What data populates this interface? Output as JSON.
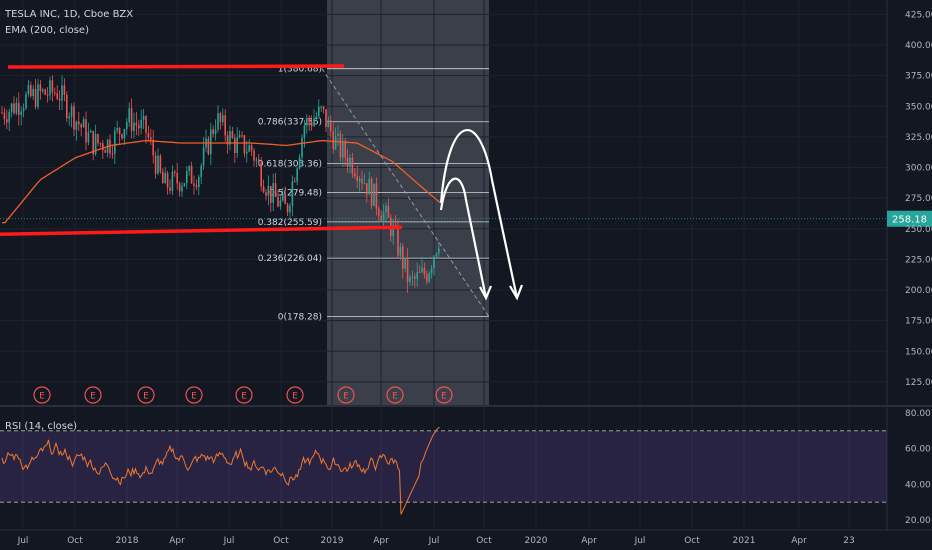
{
  "header": {
    "symbol_line": "TESLA INC, 1D, Cboe BZX",
    "indicator_line": "EMA (200, close)"
  },
  "rsi": {
    "label": "RSI (14, close)",
    "upper_band": 70,
    "lower_band": 30,
    "axis_ticks": [
      "80.00",
      "60.00",
      "40.00",
      "20.00"
    ],
    "last_values": [
      52,
      54,
      58,
      61,
      64,
      67,
      69,
      71,
      72
    ]
  },
  "earnings_marker": "E",
  "colors": {
    "background": "#131722",
    "support_resistance": "#ff1a1a",
    "ema": "#f05f28",
    "rsi_line": "#f07830",
    "price_up": "#26a69a",
    "price_down": "#ef5350",
    "last_price": "#26a69a",
    "projection": "#ffffff",
    "rsi_band": "#7e57c2"
  },
  "chart_data": {
    "type": "line",
    "title": "TESLA INC, 1D, Cboe BZX",
    "x_ticks": [
      "Jul",
      "Oct",
      "2018",
      "Apr",
      "Jul",
      "Oct",
      "2019",
      "Apr",
      "Jul",
      "Oct",
      "2020",
      "Apr",
      "Jul",
      "Oct",
      "2021",
      "Apr",
      "23"
    ],
    "y_ticks": [
      "425.00",
      "400.00",
      "375.00",
      "350.00",
      "325.00",
      "300.00",
      "275.00",
      "250.00",
      "225.00",
      "200.00",
      "175.00",
      "150.00",
      "125.00"
    ],
    "ylim": [
      100,
      430
    ],
    "last_price": {
      "label": "258.18",
      "value": 258.18
    },
    "series": [
      {
        "name": "TESLA INC",
        "x": [
          "2017-06",
          "2017-07",
          "2017-08",
          "2017-09",
          "2017-10",
          "2017-11",
          "2017-12",
          "2018-01",
          "2018-02",
          "2018-03",
          "2018-04",
          "2018-05",
          "2018-06",
          "2018-07",
          "2018-08",
          "2018-09",
          "2018-10",
          "2018-11",
          "2018-12",
          "2019-01",
          "2019-02",
          "2019-03",
          "2019-04",
          "2019-05",
          "2019-06",
          "2019-07"
        ],
        "values": [
          345,
          355,
          360,
          362,
          340,
          320,
          320,
          340,
          330,
          285,
          290,
          295,
          340,
          320,
          315,
          280,
          265,
          335,
          345,
          315,
          300,
          275,
          250,
          205,
          215,
          258
        ]
      },
      {
        "name": "EMA (200, close)",
        "x": [
          "2017-06",
          "2017-08",
          "2017-10",
          "2017-12",
          "2018-02",
          "2018-04",
          "2018-06",
          "2018-08",
          "2018-10",
          "2018-12",
          "2019-02",
          "2019-04",
          "2019-06",
          "2019-07"
        ],
        "values": [
          255,
          290,
          308,
          318,
          322,
          320,
          320,
          320,
          318,
          322,
          320,
          305,
          280,
          268
        ]
      }
    ],
    "fibonacci": [
      {
        "label": "1(380.68)",
        "value": 380.68
      },
      {
        "label": "0.786(337.36)",
        "value": 337.36
      },
      {
        "label": "0.618(303.36)",
        "value": 303.36
      },
      {
        "label": "0.5(279.48)",
        "value": 279.48
      },
      {
        "label": "0.382(255.59)",
        "value": 255.59
      },
      {
        "label": "0.236(226.04)",
        "value": 226.04
      },
      {
        "label": "0(178.28)",
        "value": 178.28
      }
    ],
    "resistance_level": 382,
    "support_level": 248
  }
}
